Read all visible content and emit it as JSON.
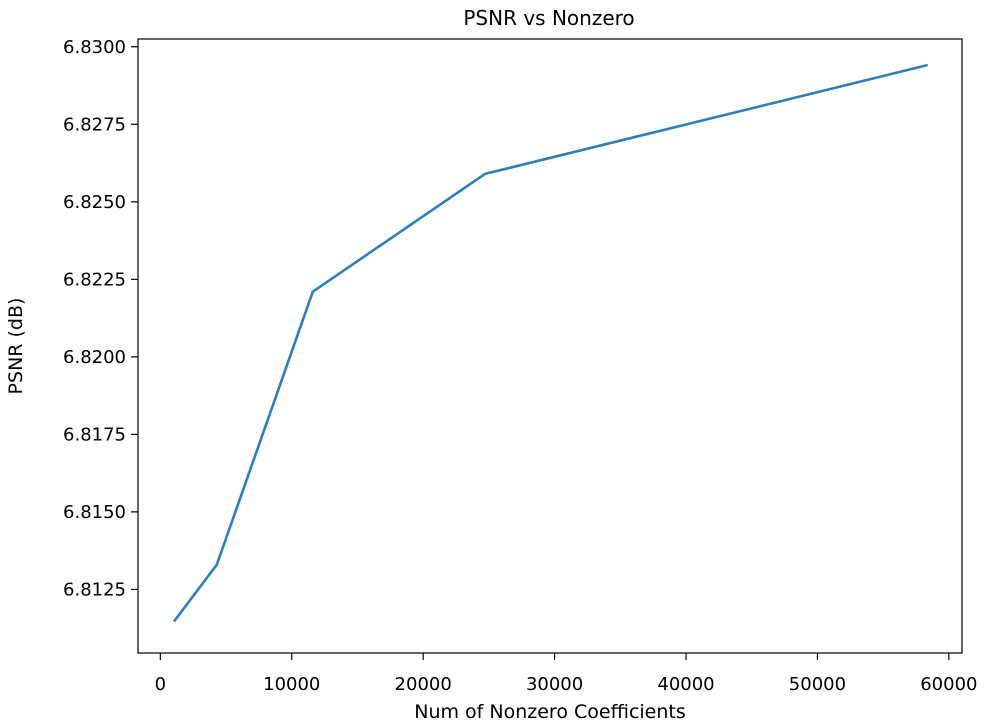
{
  "chart_data": {
    "type": "line",
    "title": "PSNR vs Nonzero",
    "xlabel": "Num of Nonzero Coefficients",
    "ylabel": "PSNR (dB)",
    "xlim": [
      -1700,
      61000
    ],
    "ylim": [
      6.81045,
      6.83025
    ],
    "xticks": [
      0,
      10000,
      20000,
      30000,
      40000,
      50000,
      60000
    ],
    "xtick_labels": [
      "0",
      "10000",
      "20000",
      "30000",
      "40000",
      "50000",
      "60000"
    ],
    "yticks": [
      6.8125,
      6.815,
      6.8175,
      6.82,
      6.8225,
      6.825,
      6.8275,
      6.83
    ],
    "ytick_labels": [
      "6.8125",
      "6.8150",
      "6.8175",
      "6.8200",
      "6.8225",
      "6.8250",
      "6.8275",
      "6.8300"
    ],
    "grid": false,
    "series": [
      {
        "color": "#2f7dba",
        "x": [
          1100,
          4300,
          11600,
          24700,
          58300
        ],
        "y": [
          6.8115,
          6.8133,
          6.8221,
          6.8259,
          6.8294
        ]
      }
    ]
  }
}
